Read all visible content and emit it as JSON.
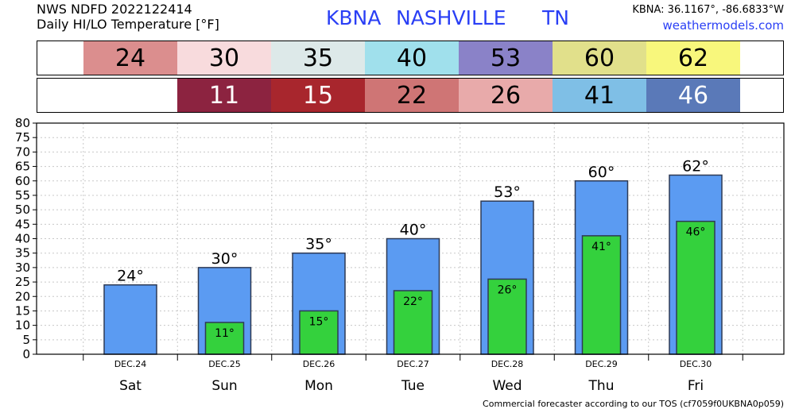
{
  "header": {
    "line1": "NWS NDFD 2022122414",
    "line2": "Daily HI/LO Temperature [°F]",
    "station": "KBNA",
    "city": "NASHVILLE",
    "state": "TN",
    "coords": "KBNA: 36.1167°, -86.6833°W",
    "site": "weathermodels.com"
  },
  "hi_strip": [
    {
      "value": "24",
      "color": "#db8e8e",
      "text_color": "#000000"
    },
    {
      "value": "30",
      "color": "#f8dbdd",
      "text_color": "#000000"
    },
    {
      "value": "35",
      "color": "#dde9e9",
      "text_color": "#000000"
    },
    {
      "value": "40",
      "color": "#a0e0ec",
      "text_color": "#000000"
    },
    {
      "value": "53",
      "color": "#8a82c8",
      "text_color": "#000000"
    },
    {
      "value": "60",
      "color": "#e1e08b",
      "text_color": "#000000"
    },
    {
      "value": "62",
      "color": "#f8f77c",
      "text_color": "#000000"
    }
  ],
  "lo_strip": [
    {
      "value": "11",
      "color": "#8c2340",
      "text_color": "#ffffff"
    },
    {
      "value": "15",
      "color": "#a8262d",
      "text_color": "#ffffff"
    },
    {
      "value": "22",
      "color": "#cf7575",
      "text_color": "#000000"
    },
    {
      "value": "26",
      "color": "#e8aaaa",
      "text_color": "#000000"
    },
    {
      "value": "41",
      "color": "#7fbfe6",
      "text_color": "#000000"
    },
    {
      "value": "46",
      "color": "#5a79b8",
      "text_color": "#ffffff"
    }
  ],
  "chart_data": {
    "type": "bar",
    "categories": [
      "DEC.24",
      "DEC.25",
      "DEC.26",
      "DEC.27",
      "DEC.28",
      "DEC.29",
      "DEC.30"
    ],
    "days": [
      "Sat",
      "Sun",
      "Mon",
      "Tue",
      "Wed",
      "Thu",
      "Fri"
    ],
    "series": [
      {
        "name": "",
        "values": [
          24,
          30,
          35,
          40,
          53,
          60,
          62
        ],
        "color": "#5b9bf2"
      },
      {
        "name": "",
        "values": [
          null,
          11,
          15,
          22,
          26,
          41,
          46
        ],
        "color": "#34d13d"
      }
    ],
    "hi_labels": [
      "24°",
      "30°",
      "35°",
      "40°",
      "53°",
      "60°",
      "62°"
    ],
    "lo_labels": [
      "",
      "11°",
      "15°",
      "22°",
      "26°",
      "41°",
      "46°"
    ],
    "yticks": [
      "0",
      "5",
      "10",
      "15",
      "20",
      "25",
      "30",
      "35",
      "40",
      "45",
      "50",
      "55",
      "60",
      "65",
      "70",
      "75",
      "80"
    ],
    "ylim": [
      0,
      80
    ],
    "grid": true,
    "title": "",
    "xlabel": "",
    "ylabel": ""
  },
  "footer": "Commercial forecaster according to our TOS (cf7059f0UKBNA0p059)"
}
